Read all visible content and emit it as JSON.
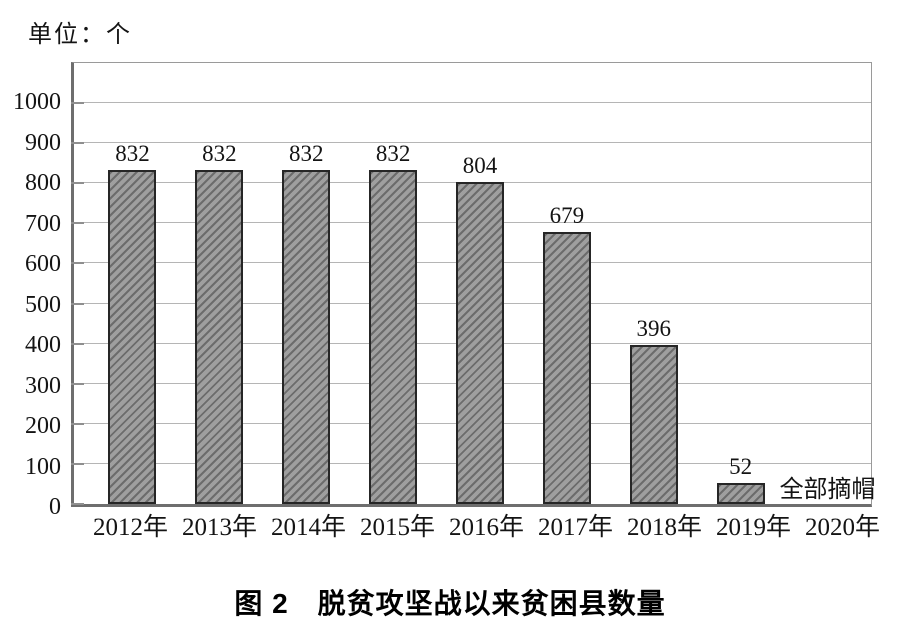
{
  "unit_label": "单位：个",
  "caption": "图 2　脱贫攻坚战以来贫困县数量",
  "chart_data": {
    "type": "bar",
    "title": "图 2　脱贫攻坚战以来贫困县数量",
    "unit": "单位：个",
    "xlabel": "",
    "ylabel": "",
    "categories": [
      "2012年",
      "2013年",
      "2014年",
      "2015年",
      "2016年",
      "2017年",
      "2018年",
      "2019年",
      "2020年"
    ],
    "values": [
      832,
      832,
      832,
      832,
      804,
      679,
      396,
      52,
      null
    ],
    "data_labels": [
      "832",
      "832",
      "832",
      "832",
      "804",
      "679",
      "396",
      "52",
      ""
    ],
    "annotation": {
      "category": "2020年",
      "text": "全部摘帽"
    },
    "ylim": [
      0,
      1100
    ],
    "yticks": [
      0,
      100,
      200,
      300,
      400,
      500,
      600,
      700,
      800,
      900,
      1000
    ],
    "grid": true,
    "legend": "none",
    "bar_fill_color": "#9f9f9f",
    "bar_hatch_color": "#6c6c6c",
    "bar_border_color": "#262626",
    "gridline_color": "#b5b5b5",
    "hatch": "diagonal-forward"
  }
}
